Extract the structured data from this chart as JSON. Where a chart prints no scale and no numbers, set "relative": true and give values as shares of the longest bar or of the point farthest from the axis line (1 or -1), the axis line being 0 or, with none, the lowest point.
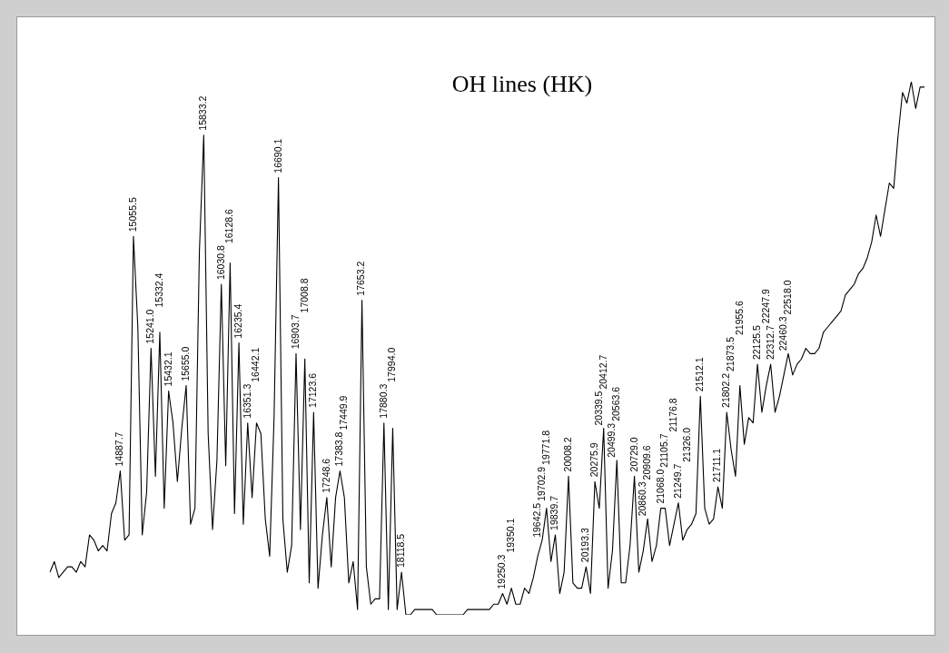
{
  "chart_data": {
    "type": "line",
    "title": "OH lines (HK)",
    "relative": true,
    "marker": "none",
    "categories": [
      null,
      null,
      null,
      null,
      null,
      null,
      null,
      null,
      null,
      null,
      null,
      null,
      null,
      null,
      null,
      null,
      "14887.7",
      null,
      null,
      "15055.5",
      null,
      null,
      null,
      "15241.0",
      null,
      "15332.4",
      null,
      "15432.1",
      null,
      null,
      null,
      "15655.0",
      null,
      null,
      null,
      "15833.2",
      null,
      null,
      null,
      "16030.8",
      null,
      "16128.6",
      null,
      "16235.4",
      null,
      "16351.3",
      null,
      "16442.1",
      null,
      null,
      null,
      null,
      "16690.1",
      null,
      null,
      null,
      "16903.7",
      null,
      "17008.8",
      null,
      "17123.6",
      null,
      null,
      "17248.6",
      null,
      null,
      "17383.8",
      "17449.9",
      null,
      null,
      null,
      "17653.2",
      null,
      null,
      null,
      null,
      "17880.3",
      null,
      "17994.0",
      null,
      "18118.5",
      null,
      null,
      null,
      null,
      null,
      null,
      null,
      null,
      null,
      null,
      null,
      null,
      null,
      null,
      null,
      null,
      null,
      null,
      null,
      null,
      null,
      null,
      "19250.3",
      null,
      "19350.1",
      null,
      null,
      null,
      null,
      null,
      "19642.5",
      "19702.9",
      "19771.8",
      null,
      "19839.7",
      null,
      null,
      "20008.2",
      null,
      null,
      null,
      "20193.3",
      null,
      "20275.9",
      "20339.5",
      "20412.7",
      null,
      "20499.3",
      "20563.6",
      null,
      null,
      null,
      "20729.0",
      null,
      "20860.3",
      "20909.6",
      null,
      null,
      "21068.0",
      "21105.7",
      null,
      "21176.8",
      "21249.7",
      null,
      "21326.0",
      null,
      null,
      "21512.1",
      null,
      null,
      null,
      "21711.1",
      null,
      "21802.2",
      "21873.5",
      null,
      "21955.6",
      null,
      null,
      null,
      "22125.5",
      null,
      "22247.9",
      "22312.7",
      null,
      null,
      "22460.3",
      "22518.0",
      null,
      null,
      null,
      null,
      null,
      null,
      null,
      null,
      null,
      null,
      null,
      null,
      null,
      null,
      null,
      null,
      null,
      null,
      null,
      null,
      null,
      null,
      null,
      null,
      null,
      null,
      null,
      null,
      null,
      null,
      null
    ],
    "series": [
      {
        "color": "#000000",
        "values": [
          0.08,
          0.1,
          0.07,
          0.08,
          0.09,
          0.09,
          0.08,
          0.1,
          0.09,
          0.15,
          0.14,
          0.12,
          0.13,
          0.12,
          0.19,
          0.21,
          0.27,
          0.14,
          0.15,
          0.71,
          0.54,
          0.15,
          0.23,
          0.5,
          0.26,
          0.53,
          0.2,
          0.42,
          0.36,
          0.25,
          0.35,
          0.43,
          0.17,
          0.2,
          0.68,
          0.9,
          0.34,
          0.16,
          0.29,
          0.62,
          0.28,
          0.66,
          0.19,
          0.51,
          0.17,
          0.36,
          0.22,
          0.36,
          0.34,
          0.18,
          0.11,
          0.37,
          0.82,
          0.18,
          0.08,
          0.13,
          0.49,
          0.16,
          0.48,
          0.06,
          0.38,
          0.05,
          0.15,
          0.22,
          0.09,
          0.22,
          0.27,
          0.22,
          0.06,
          0.1,
          0.01,
          0.59,
          0.09,
          0.02,
          0.03,
          0.03,
          0.36,
          0.01,
          0.35,
          0.01,
          0.08,
          0,
          0,
          0.01,
          0.01,
          0.01,
          0.01,
          0.01,
          0,
          0,
          0,
          0,
          0,
          0,
          0,
          0.01,
          0.01,
          0.01,
          0.01,
          0.01,
          0.01,
          0.02,
          0.02,
          0.04,
          0.02,
          0.05,
          0.02,
          0.02,
          0.05,
          0.04,
          0.07,
          0.11,
          0.14,
          0.2,
          0.1,
          0.15,
          0.04,
          0.08,
          0.26,
          0.06,
          0.05,
          0.05,
          0.09,
          0.04,
          0.25,
          0.2,
          0.35,
          0.05,
          0.12,
          0.29,
          0.06,
          0.06,
          0.13,
          0.26,
          0.08,
          0.12,
          0.18,
          0.1,
          0.13,
          0.2,
          0.2,
          0.13,
          0.17,
          0.21,
          0.14,
          0.16,
          0.17,
          0.19,
          0.41,
          0.2,
          0.17,
          0.18,
          0.24,
          0.2,
          0.38,
          0.31,
          0.26,
          0.43,
          0.32,
          0.37,
          0.36,
          0.47,
          0.38,
          0.43,
          0.47,
          0.38,
          0.41,
          0.45,
          0.49,
          0.45,
          0.47,
          0.48,
          0.5,
          0.49,
          0.49,
          0.5,
          0.53,
          0.54,
          0.55,
          0.56,
          0.57,
          0.6,
          0.61,
          0.62,
          0.64,
          0.65,
          0.67,
          0.7,
          0.75,
          0.71,
          0.76,
          0.81,
          0.8,
          0.9,
          0.98,
          0.96,
          1,
          0.95,
          0.99,
          0.99
        ]
      }
    ]
  }
}
